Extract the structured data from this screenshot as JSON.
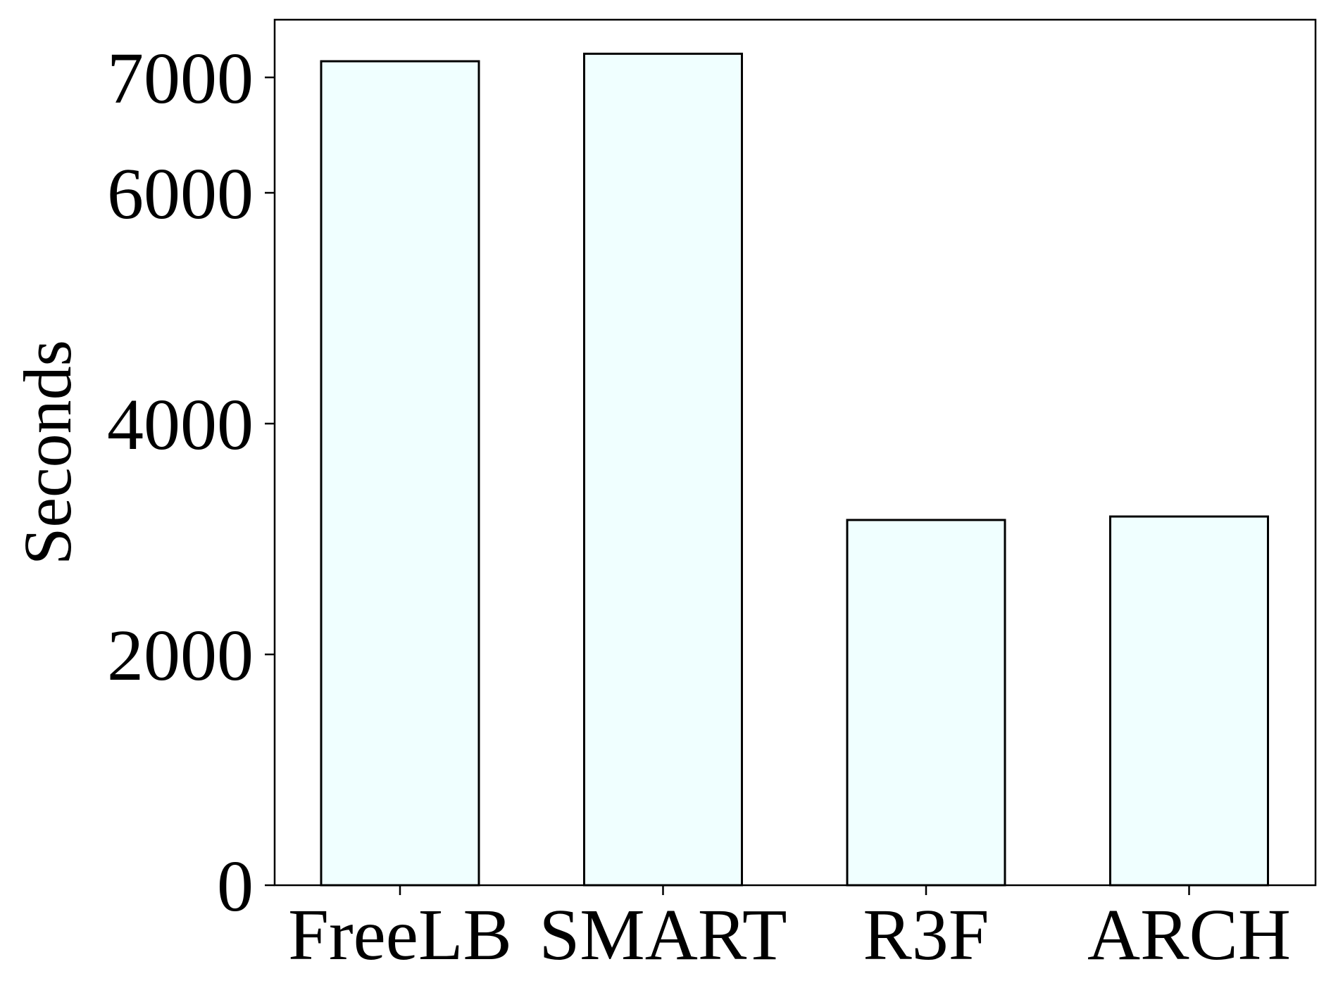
{
  "chart_data": {
    "type": "bar",
    "categories": [
      "FreeLB",
      "SMART",
      "R3F",
      "ARCH"
    ],
    "values": [
      7140,
      7205,
      3165,
      3195
    ],
    "title": "",
    "xlabel": "",
    "ylabel": "Seconds",
    "ylim": [
      0,
      7500
    ],
    "yticks": [
      0,
      2000,
      4000,
      6000,
      7000
    ],
    "grid": false,
    "legend": "none"
  },
  "colors": {
    "bar_fill": "#f0ffff",
    "bar_edge": "#000000",
    "axis": "#000000",
    "background": "#ffffff"
  }
}
